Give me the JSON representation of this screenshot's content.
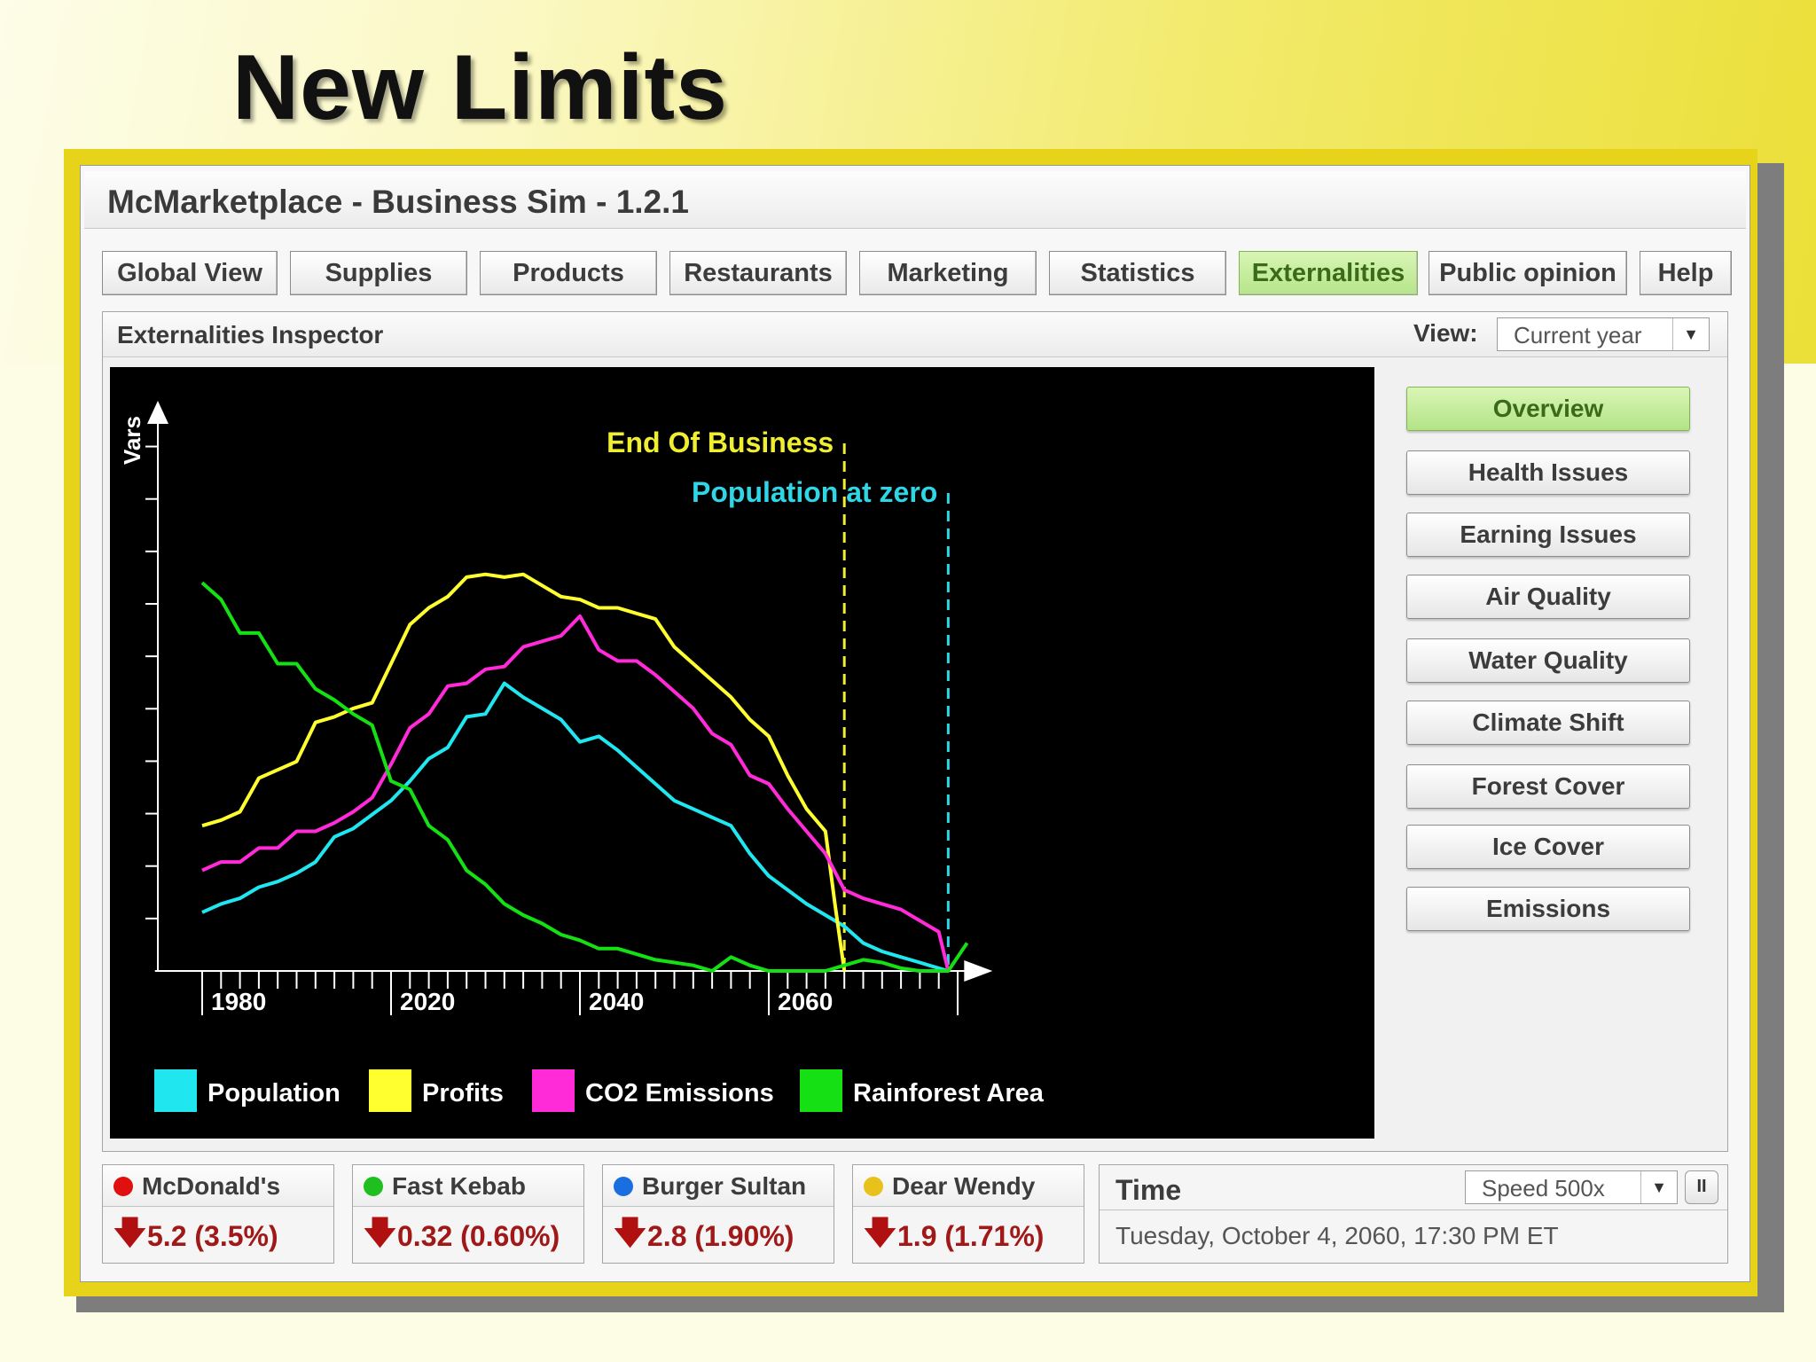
{
  "slide": {
    "title": "New Limits"
  },
  "window": {
    "title": "McMarketplace - Business Sim - 1.2.1"
  },
  "tabs": [
    {
      "label": "Global View"
    },
    {
      "label": "Supplies"
    },
    {
      "label": "Products"
    },
    {
      "label": "Restaurants"
    },
    {
      "label": "Marketing"
    },
    {
      "label": "Statistics"
    },
    {
      "label": "Externalities",
      "active": true
    },
    {
      "label": "Public opinion"
    },
    {
      "label": "Help"
    }
  ],
  "inspector": {
    "title": "Externalities Inspector",
    "view_label": "View:",
    "view_value": "Current year"
  },
  "side_buttons": [
    {
      "label": "Overview",
      "active": true
    },
    {
      "label": "Health Issues"
    },
    {
      "label": "Earning Issues"
    },
    {
      "label": "Air Quality"
    },
    {
      "label": "Water Quality"
    },
    {
      "label": "Climate Shift"
    },
    {
      "label": "Forest Cover"
    },
    {
      "label": "Ice Cover"
    },
    {
      "label": "Emissions"
    }
  ],
  "companies": [
    {
      "name": "McDonald's",
      "dot_color": "#e01010",
      "value": "5.2  (3.5%)"
    },
    {
      "name": "Fast Kebab",
      "dot_color": "#1fbf1f",
      "value": "0.32  (0.60%)"
    },
    {
      "name": "Burger Sultan",
      "dot_color": "#1a6fe0",
      "value": "2.8 (1.90%)"
    },
    {
      "name": "Dear Wendy",
      "dot_color": "#e8c21a",
      "value": "1.9  (1.71%)"
    }
  ],
  "time": {
    "label": "Time",
    "speed": "Speed 500x",
    "pause_icon": "pause-icon",
    "datetime": "Tuesday, October 4, 2060, 17:30 PM ET"
  },
  "chart_data": {
    "type": "line",
    "ylabel": "Vars",
    "xlim": [
      1975,
      2062
    ],
    "ylim": [
      0,
      100
    ],
    "x_tick_labels": [
      "1980",
      "2020",
      "2040",
      "2060"
    ],
    "background": "#000000",
    "legend_position": "bottom-left",
    "annotations": [
      {
        "text": "End Of Business",
        "x": 2048,
        "color": "#f0ee30"
      },
      {
        "text": "Population at zero",
        "x": 2059,
        "color": "#2fd6e6"
      }
    ],
    "series": [
      {
        "name": "Population",
        "color": "#20e6f0",
        "x": [
          1980,
          1982,
          1984,
          1986,
          1988,
          1990,
          1992,
          1994,
          1996,
          1998,
          2000,
          2002,
          2004,
          2006,
          2008,
          2010,
          2012,
          2014,
          2016,
          2018,
          2020,
          2022,
          2024,
          2026,
          2028,
          2030,
          2032,
          2034,
          2036,
          2038,
          2040,
          2042,
          2044,
          2046,
          2048,
          2050,
          2052,
          2054,
          2056,
          2058,
          2059
        ],
        "y": [
          10.5,
          12,
          13,
          15,
          16,
          17.5,
          19.5,
          24,
          25.5,
          28,
          30.5,
          34,
          38,
          40,
          45.5,
          46,
          51.5,
          49,
          47,
          45,
          41,
          42,
          39.5,
          36.5,
          33.5,
          30.5,
          29,
          27.5,
          26,
          21,
          17,
          14.5,
          12,
          10,
          8,
          5,
          3.5,
          2.5,
          1.5,
          0.5,
          0
        ]
      },
      {
        "name": "Profits",
        "color": "#ffff30",
        "x": [
          1980,
          1982,
          1984,
          1986,
          1988,
          1990,
          1992,
          1994,
          1996,
          1998,
          2000,
          2002,
          2004,
          2006,
          2008,
          2010,
          2012,
          2014,
          2016,
          2018,
          2020,
          2022,
          2024,
          2026,
          2028,
          2030,
          2032,
          2034,
          2036,
          2038,
          2040,
          2042,
          2044,
          2046,
          2047,
          2048
        ],
        "y": [
          26,
          27,
          28.5,
          34.5,
          36,
          37.5,
          44.5,
          45.5,
          47,
          48,
          55,
          62,
          65,
          67,
          70.5,
          71,
          70.5,
          71,
          69,
          67,
          66.5,
          65,
          65,
          64,
          63,
          58,
          55,
          52,
          49,
          45,
          42,
          35,
          29,
          25,
          12,
          0
        ]
      },
      {
        "name": "CO2 Emissions",
        "color": "#ff2ad8",
        "x": [
          1980,
          1982,
          1984,
          1986,
          1988,
          1990,
          1992,
          1994,
          1996,
          1998,
          2000,
          2002,
          2004,
          2006,
          2008,
          2010,
          2012,
          2014,
          2016,
          2018,
          2020,
          2022,
          2024,
          2026,
          2028,
          2030,
          2032,
          2034,
          2036,
          2038,
          2040,
          2042,
          2044,
          2046,
          2048,
          2050,
          2052,
          2054,
          2056,
          2058,
          2059
        ],
        "y": [
          18,
          19.5,
          19.5,
          22,
          22,
          25,
          25,
          26.5,
          28.5,
          31,
          37,
          43.5,
          46,
          51,
          51.5,
          54,
          54.5,
          58,
          59,
          60,
          63.5,
          57.5,
          55.5,
          55.5,
          53,
          50,
          47,
          42.5,
          40.5,
          35,
          33.5,
          29,
          25,
          21,
          14.5,
          13,
          12,
          11,
          9,
          7,
          0
        ]
      },
      {
        "name": "Rainforest Area",
        "color": "#14e014",
        "x": [
          1980,
          1982,
          1984,
          1986,
          1988,
          1990,
          1992,
          1994,
          1996,
          1998,
          2000,
          2002,
          2004,
          2006,
          2008,
          2010,
          2012,
          2014,
          2016,
          2018,
          2020,
          2022,
          2024,
          2026,
          2028,
          2030,
          2032,
          2034,
          2036,
          2038,
          2040,
          2042,
          2044,
          2046,
          2048,
          2050,
          2052,
          2054,
          2056,
          2058,
          2059,
          2061
        ],
        "y": [
          69.5,
          66.5,
          60.5,
          60.5,
          55,
          55,
          50.5,
          48.5,
          46,
          44,
          34,
          32.5,
          26,
          23.5,
          18,
          15.5,
          12,
          10,
          8.5,
          6.5,
          5.5,
          4,
          4,
          3,
          2,
          1.5,
          1,
          0,
          2.5,
          1,
          0,
          0,
          0,
          0,
          1,
          2,
          1.5,
          0.5,
          0,
          0,
          0,
          5
        ]
      }
    ]
  }
}
